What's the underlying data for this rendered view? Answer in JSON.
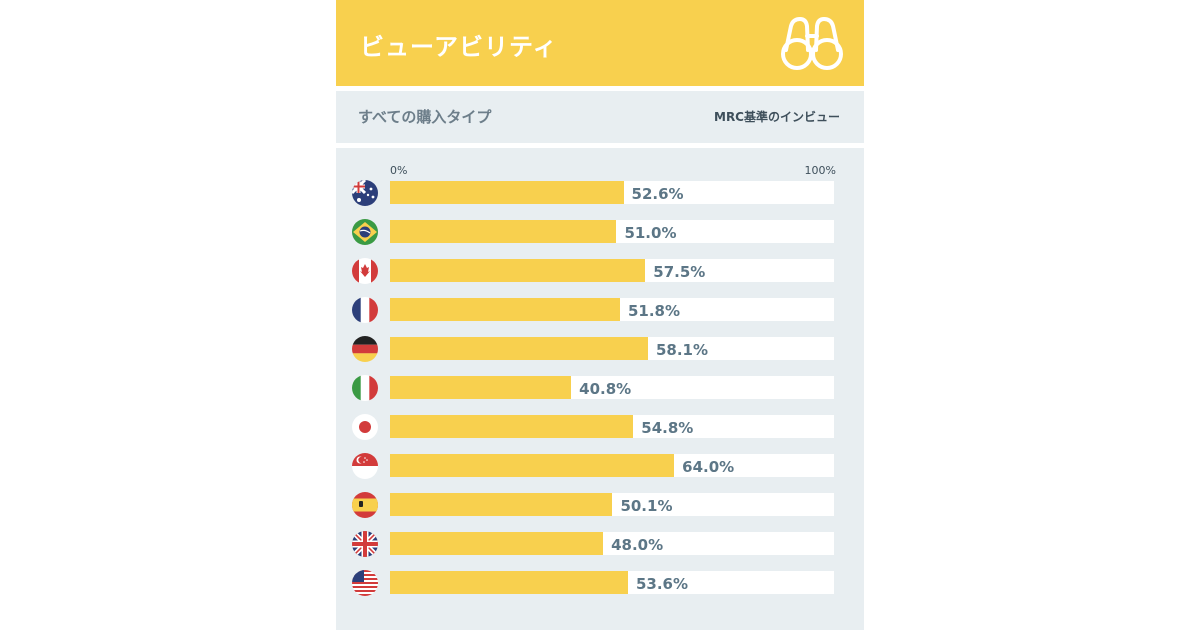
{
  "header": {
    "title": "ビューアビリティ",
    "icon": "binoculars-icon"
  },
  "subheader": {
    "left": "すべての購入タイプ",
    "right": "MRC基準のインビュー"
  },
  "colors": {
    "accent": "#f8d04e",
    "value_text": "#5c7686",
    "background": "#e8eef1"
  },
  "chart_data": {
    "type": "bar",
    "orientation": "horizontal",
    "xlim": [
      0,
      100
    ],
    "xtick_labels": [
      "0%",
      "100%"
    ],
    "categories": [
      "australia-flag-icon",
      "brazil-flag-icon",
      "canada-flag-icon",
      "france-flag-icon",
      "germany-flag-icon",
      "italy-flag-icon",
      "japan-flag-icon",
      "singapore-flag-icon",
      "spain-flag-icon",
      "uk-flag-icon",
      "usa-flag-icon"
    ],
    "values": [
      52.6,
      51.0,
      57.5,
      51.8,
      58.1,
      40.8,
      54.8,
      64.0,
      50.1,
      48.0,
      53.6
    ],
    "value_labels": [
      "52.6%",
      "51.0%",
      "57.5%",
      "51.8%",
      "58.1%",
      "40.8%",
      "54.8%",
      "64.0%",
      "50.1%",
      "48.0%",
      "53.6%"
    ]
  }
}
